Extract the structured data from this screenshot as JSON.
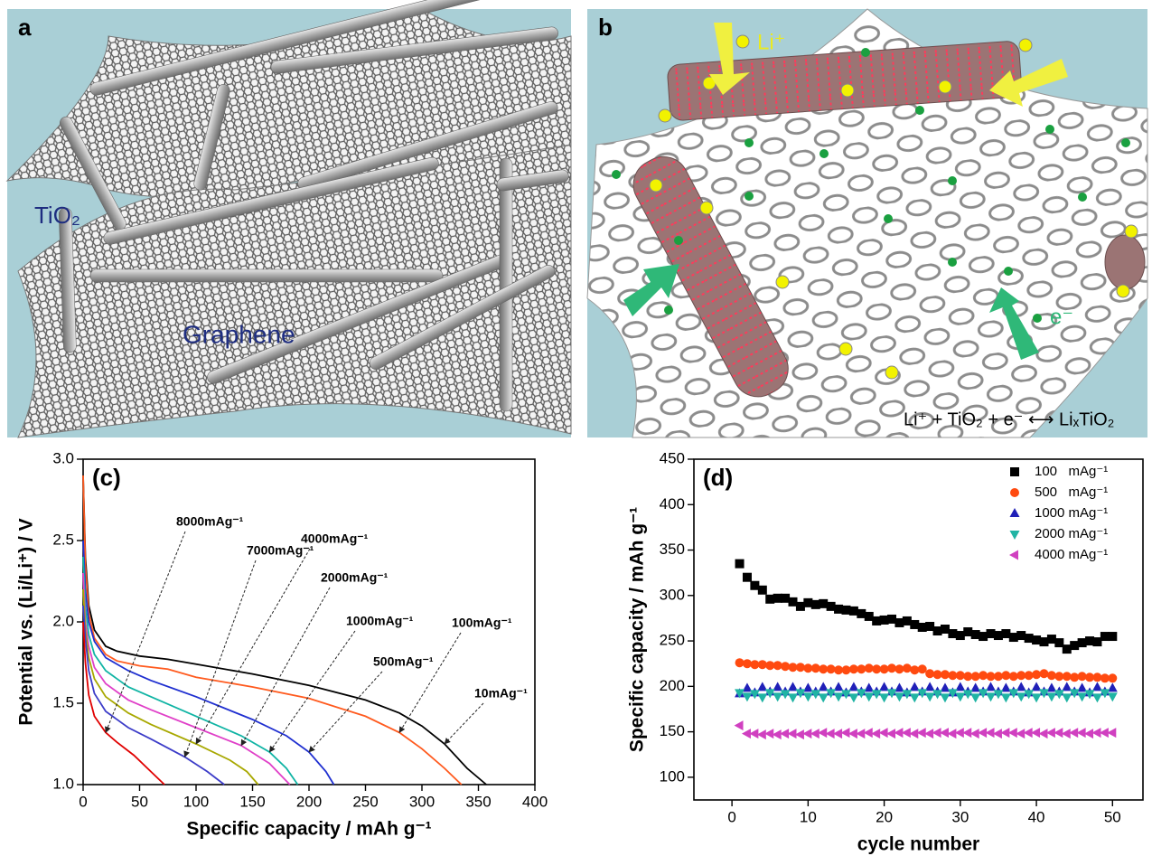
{
  "panels": [
    {
      "label": "a",
      "texts": [
        "TiO₂",
        "Graphene"
      ]
    },
    {
      "label": "b",
      "texts": [
        "Li⁺",
        "e⁻",
        "Li⁺ + TiO₂ + e⁻ ⟷ LiₓTiO₂"
      ]
    }
  ],
  "chart_data": [
    {
      "type": "line",
      "panel_label": "(c)",
      "x_label": "Specific capacity / mAh g⁻¹",
      "y_label": "Potential vs. (Li/Li⁺) / V",
      "xlim": [
        0,
        400
      ],
      "ylim": [
        1,
        3
      ],
      "xticks": [
        0,
        50,
        100,
        150,
        200,
        250,
        300,
        350,
        400
      ],
      "yticks": [
        {
          "value": 1,
          "label": "1.0"
        },
        1.5,
        {
          "value": 2,
          "label": "2.0"
        },
        2.5,
        {
          "value": 3,
          "label": "3.0"
        }
      ],
      "series": [
        {
          "name": "10mAg⁻¹",
          "color": "#000000",
          "x": [
            0,
            2,
            5,
            10,
            20,
            30,
            50,
            75,
            100,
            150,
            200,
            250,
            280,
            300,
            320,
            340,
            357
          ],
          "values": [
            2.9,
            2.4,
            2.1,
            1.95,
            1.85,
            1.82,
            1.79,
            1.77,
            1.74,
            1.68,
            1.61,
            1.52,
            1.44,
            1.36,
            1.25,
            1.1,
            1.0
          ]
        },
        {
          "name": "100mAg⁻¹",
          "color": "#ff5a1e",
          "x": [
            0,
            2,
            5,
            10,
            20,
            30,
            50,
            75,
            100,
            150,
            200,
            250,
            280,
            300,
            320,
            335
          ],
          "values": [
            2.9,
            2.35,
            2.05,
            1.9,
            1.8,
            1.76,
            1.73,
            1.71,
            1.66,
            1.6,
            1.53,
            1.42,
            1.32,
            1.22,
            1.1,
            1.0
          ]
        },
        {
          "name": "500mAg⁻¹",
          "color": "#1f2fd0",
          "x": [
            0,
            2,
            5,
            10,
            20,
            40,
            60,
            100,
            150,
            180,
            200,
            215,
            222
          ],
          "values": [
            2.5,
            2.2,
            2.0,
            1.88,
            1.78,
            1.7,
            1.64,
            1.54,
            1.4,
            1.3,
            1.2,
            1.08,
            1.0
          ]
        },
        {
          "name": "1000mAg⁻¹",
          "color": "#10b4a4",
          "x": [
            0,
            2,
            5,
            10,
            20,
            40,
            60,
            100,
            140,
            165,
            180,
            190
          ],
          "values": [
            2.4,
            2.1,
            1.92,
            1.8,
            1.7,
            1.6,
            1.54,
            1.42,
            1.3,
            1.2,
            1.1,
            1.0
          ]
        },
        {
          "name": "2000mAg⁻¹",
          "color": "#e040c8",
          "x": [
            0,
            2,
            5,
            10,
            20,
            40,
            60,
            100,
            140,
            165,
            183
          ],
          "values": [
            2.3,
            2.0,
            1.85,
            1.72,
            1.62,
            1.52,
            1.46,
            1.35,
            1.24,
            1.13,
            1.0
          ]
        },
        {
          "name": "4000mAg⁻¹",
          "color": "#a8a800",
          "x": [
            0,
            2,
            5,
            10,
            20,
            40,
            60,
            100,
            130,
            145,
            155
          ],
          "values": [
            2.2,
            1.95,
            1.78,
            1.65,
            1.54,
            1.44,
            1.37,
            1.25,
            1.15,
            1.08,
            1.0
          ]
        },
        {
          "name": "7000mAg⁻¹",
          "color": "#3c3cc8",
          "x": [
            0,
            2,
            5,
            10,
            20,
            40,
            60,
            90,
            110,
            125
          ],
          "values": [
            2.1,
            1.9,
            1.7,
            1.56,
            1.45,
            1.35,
            1.28,
            1.17,
            1.08,
            1.0
          ]
        },
        {
          "name": "8000mAg⁻¹",
          "color": "#e00000",
          "x": [
            0,
            2,
            5,
            10,
            20,
            30,
            45,
            60,
            72
          ],
          "values": [
            2.0,
            1.75,
            1.55,
            1.42,
            1.32,
            1.26,
            1.18,
            1.08,
            1.0
          ]
        }
      ]
    },
    {
      "type": "scatter",
      "panel_label": "(d)",
      "x_label": "cycle number",
      "y_label": "Specific capacity / mAh g⁻¹",
      "xlim": [
        -5,
        54
      ],
      "ylim": [
        75,
        450
      ],
      "xticks": [
        0,
        10,
        20,
        30,
        40,
        50
      ],
      "yticks": [
        100,
        150,
        200,
        250,
        300,
        350,
        400,
        450
      ],
      "legend": "upper right",
      "x": [
        1,
        2,
        3,
        4,
        5,
        6,
        7,
        8,
        9,
        10,
        11,
        12,
        13,
        14,
        15,
        16,
        17,
        18,
        19,
        20,
        21,
        22,
        23,
        24,
        25,
        26,
        27,
        28,
        29,
        30,
        31,
        32,
        33,
        34,
        35,
        36,
        37,
        38,
        39,
        40,
        41,
        42,
        43,
        44,
        45,
        46,
        47,
        48,
        49,
        50
      ],
      "series": [
        {
          "name": "100   mAg⁻¹",
          "color": "#000000",
          "marker": "square",
          "values": [
            335,
            320,
            311,
            306,
            296,
            297,
            297,
            293,
            288,
            292,
            290,
            291,
            288,
            285,
            284,
            283,
            280,
            277,
            272,
            273,
            274,
            270,
            272,
            268,
            265,
            266,
            261,
            263,
            258,
            256,
            260,
            257,
            255,
            258,
            256,
            258,
            254,
            256,
            253,
            251,
            249,
            252,
            248,
            241,
            245,
            248,
            250,
            249,
            255,
            255
          ]
        },
        {
          "name": "500   mAg⁻¹",
          "color": "#ff4a10",
          "marker": "circle",
          "values": [
            226,
            225,
            224,
            224,
            223,
            223,
            222,
            221,
            221,
            220,
            220,
            219,
            219,
            218,
            218,
            219,
            219,
            220,
            219,
            219,
            220,
            219,
            220,
            218,
            219,
            214,
            213,
            213,
            212,
            212,
            211,
            211,
            212,
            211,
            211,
            212,
            211,
            212,
            212,
            213,
            214,
            212,
            211,
            211,
            210,
            211,
            210,
            210,
            209,
            209
          ]
        },
        {
          "name": "1000 mAg⁻¹",
          "color": "#2020b8",
          "marker": "triangle-up",
          "values": [
            192,
            198,
            193,
            199,
            194,
            199,
            194,
            199,
            194,
            198,
            194,
            199,
            194,
            199,
            193,
            199,
            194,
            198,
            194,
            199,
            194,
            198,
            193,
            199,
            194,
            199,
            194,
            198,
            193,
            199,
            194,
            198,
            194,
            199,
            194,
            198,
            194,
            199,
            193,
            199,
            194,
            198,
            194,
            199,
            194,
            198,
            193,
            199,
            194,
            198
          ]
        },
        {
          "name": "2000 mAg⁻¹",
          "color": "#20b4a4",
          "marker": "triangle-down",
          "values": [
            193,
            189,
            192,
            188,
            193,
            189,
            192,
            188,
            193,
            189,
            192,
            188,
            193,
            189,
            192,
            188,
            193,
            189,
            192,
            188,
            193,
            189,
            192,
            188,
            193,
            189,
            192,
            188,
            193,
            189,
            192,
            188,
            193,
            189,
            192,
            188,
            193,
            189,
            192,
            188,
            193,
            189,
            192,
            188,
            193,
            189,
            192,
            188,
            193,
            189
          ]
        },
        {
          "name": "4000 mAg⁻¹",
          "color": "#d040c0",
          "marker": "triangle-left",
          "values": [
            157,
            148,
            148,
            147,
            148,
            147,
            148,
            148,
            147,
            148,
            148,
            149,
            148,
            148,
            149,
            148,
            148,
            149,
            148,
            149,
            148,
            149,
            149,
            148,
            149,
            148,
            149,
            149,
            148,
            149,
            149,
            148,
            149,
            149,
            148,
            149,
            149,
            148,
            149,
            149,
            148,
            149,
            149,
            148,
            149,
            149,
            148,
            149,
            149,
            149
          ]
        }
      ]
    }
  ]
}
